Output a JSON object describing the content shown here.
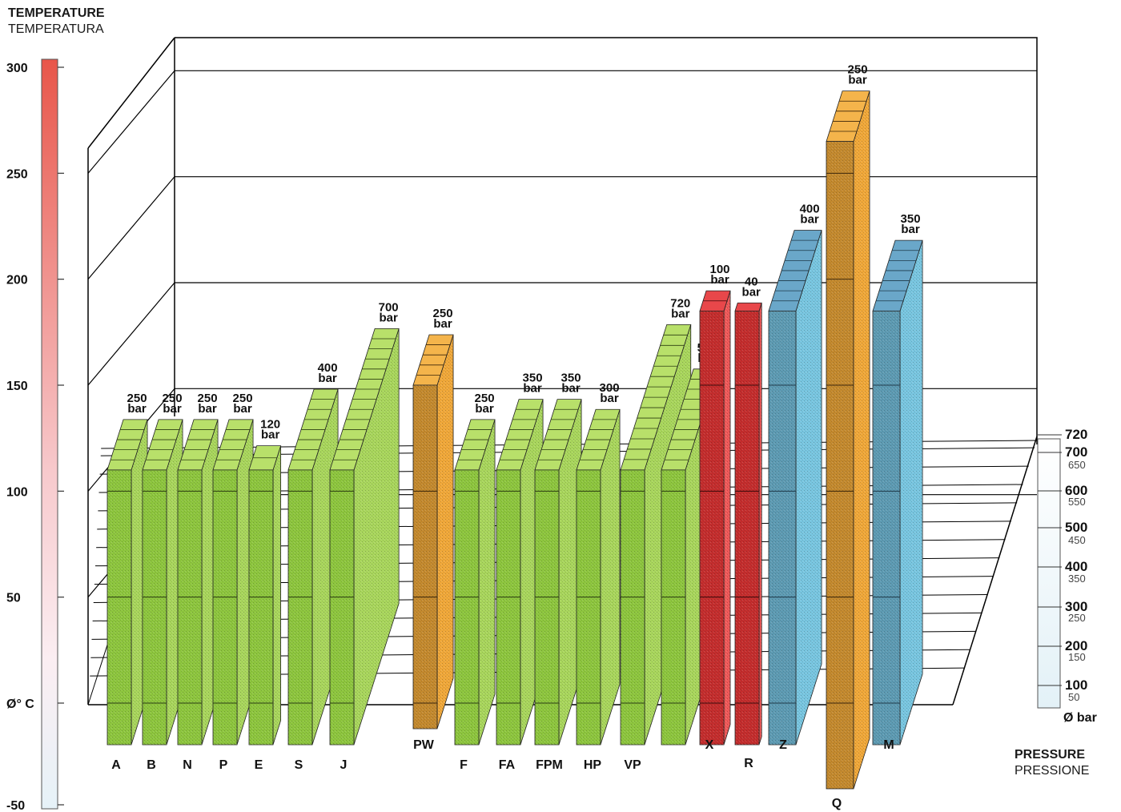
{
  "header": {
    "temp_title": "TEMPERATURE",
    "temp_subtitle": "TEMPERATURA",
    "pressure_title": "PRESSURE",
    "pressure_subtitle": "PRESSIONE"
  },
  "chart_data": {
    "type": "bar",
    "description_axes": {
      "y_left": {
        "label": "Ø° C",
        "ticks": [
          300,
          250,
          200,
          150,
          100,
          50,
          "Ø° C",
          -50
        ],
        "range": [
          -50,
          300
        ]
      },
      "z_right": {
        "label": "Ø bar",
        "major_ticks": [
          720,
          700,
          600,
          500,
          400,
          300,
          200,
          100
        ],
        "minor_ticks": [
          650,
          550,
          450,
          350,
          250,
          150,
          50
        ],
        "range": [
          0,
          720
        ]
      }
    },
    "bar_unit": "bar",
    "colors": {
      "green": "#8ec63f",
      "orange": "#f0a83a",
      "red": "#d9383a",
      "blue": "#6fb8d8",
      "axis_red": "#e8564a"
    },
    "series": [
      {
        "name": "A",
        "pressure": 250,
        "tmin": -20,
        "tmax": 110,
        "color": "green"
      },
      {
        "name": "B",
        "pressure": 250,
        "tmin": -20,
        "tmax": 110,
        "color": "green"
      },
      {
        "name": "N",
        "pressure": 250,
        "tmin": -20,
        "tmax": 110,
        "color": "green"
      },
      {
        "name": "P",
        "pressure": 250,
        "tmin": -20,
        "tmax": 110,
        "color": "green"
      },
      {
        "name": "E",
        "pressure": 120,
        "tmin": -20,
        "tmax": 110,
        "color": "green"
      },
      {
        "name": "S",
        "pressure": 400,
        "tmin": -20,
        "tmax": 110,
        "color": "green"
      },
      {
        "name": "J",
        "pressure": 700,
        "tmin": -20,
        "tmax": 110,
        "color": "green"
      },
      {
        "name": "PW",
        "pressure": 250,
        "tmin": -25,
        "tmax": 150,
        "color": "orange"
      },
      {
        "name": "F",
        "pressure": 250,
        "tmin": -20,
        "tmax": 110,
        "color": "green"
      },
      {
        "name": "FA",
        "pressure": 350,
        "tmin": -20,
        "tmax": 110,
        "color": "green"
      },
      {
        "name": "FPM",
        "pressure": 350,
        "tmin": -20,
        "tmax": 110,
        "color": "green"
      },
      {
        "name": "HP",
        "pressure": 300,
        "tmin": -20,
        "tmax": 110,
        "color": "green"
      },
      {
        "name": "VP",
        "pressure": 720,
        "tmin": -20,
        "tmax": 110,
        "color": "green"
      },
      {
        "name": "VP2",
        "pressure": 500,
        "tmin": -20,
        "tmax": 110,
        "color": "green",
        "no_label": true
      },
      {
        "name": "X",
        "pressure": 100,
        "tmin": -15,
        "tmax": 185,
        "color": "red"
      },
      {
        "name": "R",
        "pressure": 40,
        "tmin": -20,
        "tmax": 185,
        "color": "red"
      },
      {
        "name": "Z",
        "pressure": 400,
        "tmin": -15,
        "tmax": 185,
        "color": "blue"
      },
      {
        "name": "Q",
        "pressure": 250,
        "tmin": -45,
        "tmax": 265,
        "color": "orange"
      },
      {
        "name": "M",
        "pressure": 350,
        "tmin": -15,
        "tmax": 185,
        "color": "blue"
      }
    ],
    "bar_labels": [
      "250",
      "250",
      "250",
      "250",
      "120",
      "400",
      "700",
      "250",
      "250",
      "350",
      "350",
      "300",
      "720",
      "500",
      "100",
      "40",
      "400",
      "250",
      "350"
    ]
  }
}
